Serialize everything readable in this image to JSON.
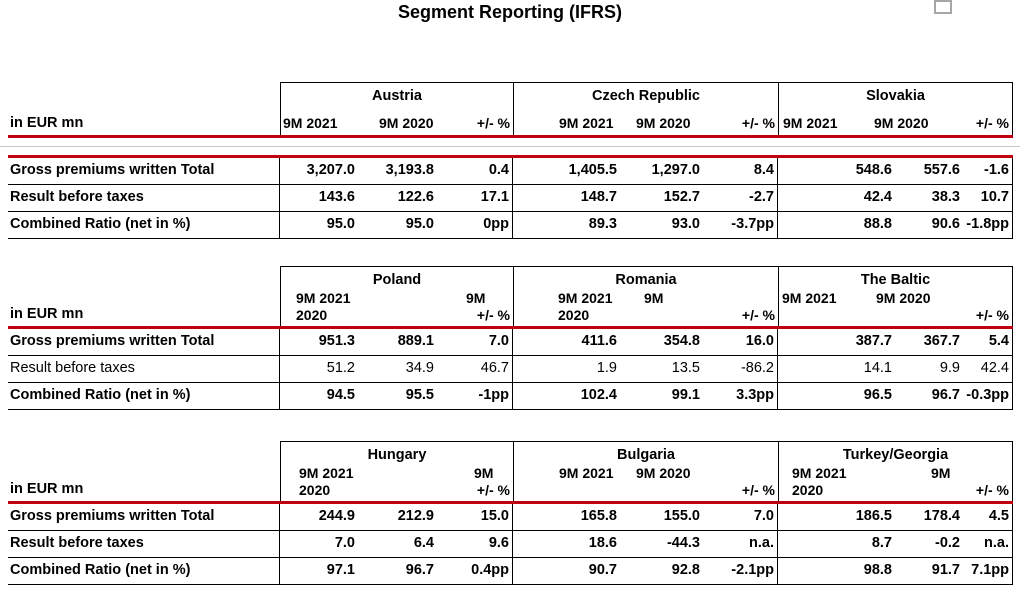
{
  "title": "Segment Reporting (IFRS)",
  "unit_label": "in EUR mn",
  "colors": {
    "rule_red": "#c00010",
    "border_black": "#000000",
    "spacer_gray": "#c8c8c8",
    "placeholder_gray": "#a6a6a6"
  },
  "tables": [
    {
      "blocks": [
        {
          "country": "Austria",
          "periods": [
            "9M 2021",
            "9M 2020"
          ],
          "delta": "+/- %"
        },
        {
          "country": "Czech Republic",
          "periods": [
            "9M 2021",
            "9M 2020"
          ],
          "delta": "+/- %"
        },
        {
          "country": "Slovakia",
          "periods": [
            "9M 2021",
            "9M 2020"
          ],
          "delta": "+/- %"
        }
      ],
      "rows": [
        {
          "label": "Gross premiums written Total",
          "bold": true,
          "cells": [
            "3,207.0",
            "3,193.8",
            "0.4",
            "1,405.5",
            "1,297.0",
            "8.4",
            "548.6",
            "557.6",
            "-1.6"
          ]
        },
        {
          "label": "Result before taxes",
          "bold": true,
          "cells": [
            "143.6",
            "122.6",
            "17.1",
            "148.7",
            "152.7",
            "-2.7",
            "42.4",
            "38.3",
            "10.7"
          ]
        },
        {
          "label": "Combined Ratio (net in %)",
          "bold": true,
          "cells": [
            "95.0",
            "95.0",
            "0pp",
            "89.3",
            "93.0",
            "-3.7pp",
            "88.8",
            "90.6",
            "-1.8pp"
          ]
        }
      ]
    },
    {
      "blocks": [
        {
          "country": "Poland",
          "periods": [
            "9M 2021",
            "9M 2020"
          ],
          "delta": "+/- %"
        },
        {
          "country": "Romania",
          "periods": [
            "9M 2021",
            "9M 2020"
          ],
          "delta": "+/- %"
        },
        {
          "country": "The Baltic",
          "periods": [
            "9M 2021",
            "9M 2020"
          ],
          "delta": "+/- %"
        }
      ],
      "rows": [
        {
          "label": "Gross premiums written Total",
          "bold": true,
          "cells": [
            "951.3",
            "889.1",
            "7.0",
            "411.6",
            "354.8",
            "16.0",
            "387.7",
            "367.7",
            "5.4"
          ]
        },
        {
          "label": "Result before taxes",
          "bold": false,
          "cells": [
            "51.2",
            "34.9",
            "46.7",
            "1.9",
            "13.5",
            "-86.2",
            "14.1",
            "9.9",
            "42.4"
          ]
        },
        {
          "label": "Combined Ratio (net in %)",
          "bold": true,
          "cells": [
            "94.5",
            "95.5",
            "-1pp",
            "102.4",
            "99.1",
            "3.3pp",
            "96.5",
            "96.7",
            "-0.3pp"
          ]
        }
      ]
    },
    {
      "blocks": [
        {
          "country": "Hungary",
          "periods": [
            "9M 2021",
            "9M 2020"
          ],
          "delta": "+/- %"
        },
        {
          "country": "Bulgaria",
          "periods": [
            "9M 2021",
            "9M 2020"
          ],
          "delta": "+/- %"
        },
        {
          "country": "Turkey/Georgia",
          "periods": [
            "9M 2021",
            "9M 2020"
          ],
          "delta": "+/- %"
        }
      ],
      "rows": [
        {
          "label": "Gross premiums written Total",
          "bold": true,
          "cells": [
            "244.9",
            "212.9",
            "15.0",
            "165.8",
            "155.0",
            "7.0",
            "186.5",
            "178.4",
            "4.5"
          ]
        },
        {
          "label": "Result before taxes",
          "bold": true,
          "cells": [
            "7.0",
            "6.4",
            "9.6",
            "18.6",
            "-44.3",
            "n.a.",
            "8.7",
            "-0.2",
            "n.a."
          ]
        },
        {
          "label": "Combined Ratio (net in %)",
          "bold": true,
          "cells": [
            "97.1",
            "96.7",
            "0.4pp",
            "90.7",
            "92.8",
            "-2.1pp",
            "98.8",
            "91.7",
            "7.1pp"
          ]
        }
      ]
    }
  ]
}
